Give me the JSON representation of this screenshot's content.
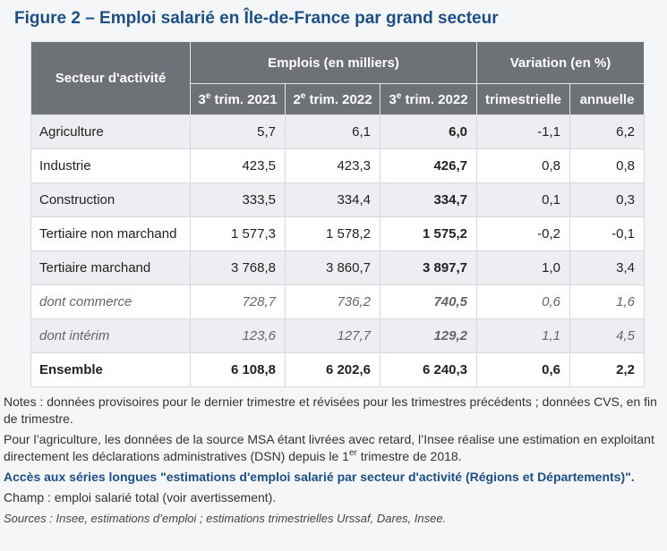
{
  "title": "Figure 2 – Emploi salarié en Île-de-France par grand secteur",
  "header": {
    "secteur": "Secteur d'activité",
    "emplois": "Emplois (en milliers)",
    "variation": "Variation (en %)",
    "cols": [
      {
        "num": "3",
        "sup": "e",
        "rest": " trim. 2021"
      },
      {
        "num": "2",
        "sup": "e",
        "rest": " trim. 2022"
      },
      {
        "num": "3",
        "sup": "e",
        "rest": " trim. 2022"
      }
    ],
    "trimestrielle": "trimestrielle",
    "annuelle": "annuelle"
  },
  "rows": [
    {
      "label": "Agriculture",
      "v1": "5,7",
      "v2": "6,1",
      "v3": "6,0",
      "tri": "-1,1",
      "ann": "6,2"
    },
    {
      "label": "Industrie",
      "v1": "423,5",
      "v2": "423,3",
      "v3": "426,7",
      "tri": "0,8",
      "ann": "0,8"
    },
    {
      "label": "Construction",
      "v1": "333,5",
      "v2": "334,4",
      "v3": "334,7",
      "tri": "0,1",
      "ann": "0,3"
    },
    {
      "label": "Tertiaire non marchand",
      "v1": "1 577,3",
      "v2": "1 578,2",
      "v3": "1 575,2",
      "tri": "-0,2",
      "ann": "-0,1"
    },
    {
      "label": "Tertiaire marchand",
      "v1": "3 768,8",
      "v2": "3 860,7",
      "v3": "3 897,7",
      "tri": "1,0",
      "ann": "3,4"
    },
    {
      "label": "dont commerce",
      "v1": "728,7",
      "v2": "736,2",
      "v3": "740,5",
      "tri": "0,6",
      "ann": "1,6"
    },
    {
      "label": "dont intérim",
      "v1": "123,6",
      "v2": "127,7",
      "v3": "129,2",
      "tri": "1,1",
      "ann": "4,5"
    },
    {
      "label": "Ensemble",
      "v1": "6 108,8",
      "v2": "6 202,6",
      "v3": "6 240,3",
      "tri": "0,6",
      "ann": "2,2"
    }
  ],
  "notes": {
    "n1": "Notes : données provisoires pour le dernier trimestre et révisées pour les trimestres précédents ; données CVS, en fin de trimestre.",
    "n2a": "Pour l’agriculture, les données de la source MSA étant livrées avec retard, l’Insee réalise une estimation en exploitant directement les déclarations administratives (DSN) depuis le 1",
    "n2sup": "er",
    "n2b": " trimestre de 2018.",
    "link": "Accès aux séries longues \"estimations d'emploi salarié par secteur d'activité (Régions et Départements)\".",
    "champ": "Champ : emploi salarié total (voir avertissement).",
    "sources": "Sources : Insee, estimations d’emploi ; estimations trimestrielles Urssaf, Dares, Insee."
  }
}
